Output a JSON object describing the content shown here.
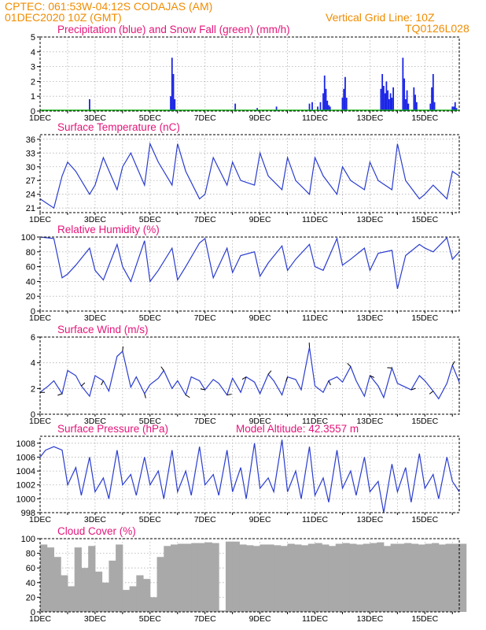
{
  "header": {
    "line1": "CPTEC:   061:53W-04:12S   CODAJAS (AM)",
    "line2": "01DEC2020  10Z  (GMT)",
    "grid_note": "Vertical Grid Line: 10Z",
    "code": "TQ0126L028"
  },
  "colors": {
    "header": "#f08c00",
    "panel_title": "#e4157a",
    "precip": "#1a24e6",
    "snow": "#14b414",
    "line": "#2a3ccf",
    "cloud": "#a9a9a9",
    "grid": "#b0b0b0"
  },
  "x_axis": {
    "day_labels": [
      "1DEC",
      "3DEC",
      "5DEC",
      "7DEC",
      "9DEC",
      "11DEC",
      "13DEC",
      "15DEC"
    ],
    "range_days": [
      0,
      15.25
    ]
  },
  "chart_data": [
    {
      "type": "bar",
      "title": "Precipitation (blue) and Snow Fall (green) (mm/h)",
      "ylim": [
        0,
        5
      ],
      "yticks": [
        "0",
        "1",
        "2",
        "3",
        "4",
        "5"
      ],
      "series": [
        {
          "name": "Precipitation",
          "x": [
            1.8,
            4.75,
            4.8,
            4.85,
            4.9,
            7.1,
            7.9,
            8.6,
            9.8,
            9.9,
            10.1,
            10.2,
            10.3,
            10.35,
            10.4,
            10.45,
            10.5,
            10.55,
            11.0,
            11.05,
            11.1,
            11.15,
            12.4,
            12.45,
            12.5,
            12.55,
            12.6,
            12.65,
            12.7,
            12.75,
            12.8,
            12.85,
            13.2,
            13.25,
            13.3,
            13.35,
            13.4,
            13.6,
            13.65,
            13.7,
            14.2,
            14.25,
            14.3,
            14.35,
            15.0,
            15.05,
            15.1,
            15.15
          ],
          "values": [
            0.8,
            1.0,
            3.6,
            2.5,
            0.8,
            0.5,
            0.2,
            0.3,
            0.5,
            0.6,
            0.3,
            0.6,
            1.2,
            2.4,
            1.5,
            0.7,
            0.4,
            0.3,
            0.9,
            1.5,
            2.3,
            0.9,
            1.5,
            2.5,
            1.7,
            1.2,
            2.0,
            1.4,
            0.8,
            1.2,
            0.9,
            1.6,
            3.6,
            2.2,
            0.8,
            1.4,
            0.5,
            1.6,
            1.1,
            0.6,
            0.5,
            1.6,
            2.5,
            0.6,
            0.3,
            0.3,
            0.6,
            0.2
          ]
        },
        {
          "name": "Snow Fall",
          "x": [],
          "values": []
        }
      ]
    },
    {
      "type": "line",
      "title": "Surface Temperature (nC)",
      "ylim": [
        20,
        37
      ],
      "yticks": [
        "21",
        "24",
        "27",
        "30",
        "33",
        "36"
      ],
      "ytick_values": [
        21,
        24,
        27,
        30,
        33,
        36
      ],
      "x": [
        0,
        0.5,
        0.8,
        1.0,
        1.3,
        1.8,
        2.0,
        2.3,
        2.8,
        3.0,
        3.3,
        3.8,
        4.0,
        4.3,
        4.8,
        5.0,
        5.3,
        5.8,
        6.0,
        6.3,
        6.8,
        7.0,
        7.3,
        7.8,
        8.0,
        8.3,
        8.8,
        9.0,
        9.3,
        9.8,
        10.0,
        10.3,
        10.8,
        11.0,
        11.3,
        11.8,
        12.0,
        12.3,
        12.8,
        13.0,
        13.3,
        13.8,
        14.0,
        14.3,
        14.8,
        15.0,
        15.25
      ],
      "values": [
        23,
        21,
        28,
        31,
        29,
        24,
        26,
        32,
        25,
        30,
        33,
        26,
        35,
        31,
        26,
        35,
        29,
        23,
        24,
        32,
        26,
        31,
        27,
        26,
        33,
        28,
        25,
        32,
        27,
        24,
        32,
        28,
        24,
        30,
        27,
        25,
        31,
        27,
        25,
        35,
        27,
        23,
        24,
        26,
        23,
        29,
        28
      ]
    },
    {
      "type": "line",
      "title": "Relative Humidity (%)",
      "ylim": [
        0,
        100
      ],
      "yticks": [
        "0",
        "20",
        "40",
        "60",
        "80",
        "100"
      ],
      "ytick_values": [
        0,
        20,
        40,
        60,
        80,
        100
      ],
      "x": [
        0,
        0.5,
        0.8,
        1.0,
        1.3,
        1.8,
        2.0,
        2.3,
        2.8,
        3.0,
        3.3,
        3.8,
        4.0,
        4.3,
        4.8,
        5.0,
        5.3,
        5.8,
        6.0,
        6.3,
        6.8,
        7.0,
        7.3,
        7.8,
        8.0,
        8.3,
        8.8,
        9.0,
        9.3,
        9.8,
        10.0,
        10.3,
        10.8,
        11.0,
        11.3,
        11.8,
        12.0,
        12.3,
        12.8,
        13.0,
        13.3,
        13.8,
        14.0,
        14.3,
        14.8,
        15.0,
        15.25
      ],
      "values": [
        100,
        98,
        45,
        50,
        62,
        85,
        55,
        42,
        90,
        60,
        40,
        95,
        40,
        55,
        85,
        42,
        60,
        92,
        98,
        45,
        85,
        52,
        75,
        80,
        47,
        65,
        88,
        55,
        70,
        90,
        60,
        55,
        98,
        62,
        70,
        85,
        55,
        78,
        82,
        30,
        75,
        90,
        85,
        80,
        99,
        70,
        80
      ]
    },
    {
      "type": "line",
      "title": "Surface Wind (m/s)",
      "ylim": [
        0,
        6
      ],
      "yticks": [
        "0",
        "2",
        "4",
        "6"
      ],
      "ytick_values": [
        0,
        2,
        4,
        6
      ],
      "x": [
        0,
        0.3,
        0.5,
        0.8,
        1.0,
        1.3,
        1.5,
        1.8,
        2.0,
        2.3,
        2.5,
        2.8,
        3.0,
        3.3,
        3.5,
        3.8,
        4.0,
        4.3,
        4.5,
        4.8,
        5.0,
        5.3,
        5.5,
        5.8,
        6.0,
        6.3,
        6.5,
        6.8,
        7.0,
        7.3,
        7.5,
        7.8,
        8.0,
        8.3,
        8.5,
        8.8,
        9.0,
        9.3,
        9.5,
        9.8,
        10.0,
        10.3,
        10.5,
        10.8,
        11.0,
        11.3,
        11.5,
        11.8,
        12.0,
        12.3,
        12.5,
        12.8,
        13.0,
        13.3,
        13.5,
        13.8,
        14.0,
        14.3,
        14.5,
        14.8,
        15.0,
        15.25
      ],
      "values": [
        1.7,
        2.2,
        2.6,
        1.6,
        3.4,
        3.0,
        2.2,
        1.4,
        3.0,
        2.6,
        1.8,
        4.5,
        4.9,
        2.1,
        2.9,
        1.6,
        2.3,
        2.8,
        3.4,
        2.0,
        2.6,
        1.5,
        2.9,
        2.6,
        1.9,
        2.7,
        2.4,
        1.5,
        2.8,
        1.7,
        2.9,
        2.5,
        1.6,
        3.1,
        2.6,
        1.5,
        2.9,
        2.7,
        1.9,
        5.2,
        2.2,
        1.7,
        2.6,
        2.9,
        2.5,
        3.7,
        2.6,
        1.4,
        3.0,
        2.2,
        1.3,
        3.6,
        2.4,
        2.1,
        1.9,
        3.0,
        2.6,
        1.8,
        1.2,
        2.4,
        3.8,
        2.5
      ]
    },
    {
      "type": "line",
      "title": "Surface Pressure (hPa)",
      "annotation": "Model Altitude: 42.3557 m",
      "ylim": [
        998,
        1009
      ],
      "yticks": [
        "998",
        "1000",
        "1002",
        "1004",
        "1006",
        "1008"
      ],
      "ytick_values": [
        998,
        1000,
        1002,
        1004,
        1006,
        1008
      ],
      "x": [
        0,
        0.2,
        0.5,
        0.8,
        1.0,
        1.3,
        1.5,
        1.8,
        2.0,
        2.3,
        2.5,
        2.8,
        3.0,
        3.3,
        3.5,
        3.8,
        4.0,
        4.3,
        4.5,
        4.8,
        5.0,
        5.3,
        5.5,
        5.8,
        6.0,
        6.3,
        6.5,
        6.8,
        7.0,
        7.3,
        7.5,
        7.8,
        8.0,
        8.3,
        8.5,
        8.8,
        9.0,
        9.3,
        9.5,
        9.8,
        10.0,
        10.3,
        10.5,
        10.8,
        11.0,
        11.3,
        11.5,
        11.8,
        12.0,
        12.3,
        12.5,
        12.8,
        13.0,
        13.3,
        13.5,
        13.8,
        14.0,
        14.3,
        14.5,
        14.8,
        15.0,
        15.25
      ],
      "values": [
        1006,
        1007,
        1007.5,
        1007,
        1002,
        1004.5,
        1000.5,
        1006,
        1001,
        1003,
        1000,
        1007,
        1002,
        1003.5,
        1000.5,
        1006,
        1002,
        1004,
        1000,
        1007,
        1001,
        1004,
        1000.5,
        1007.5,
        1002,
        1003.5,
        1000.5,
        1007,
        1001,
        1004.5,
        1000,
        1008,
        1001.5,
        1003,
        1001,
        1008.5,
        1001,
        1004,
        1000,
        1007.5,
        1000.5,
        1003,
        999.5,
        1007,
        1001.5,
        1004,
        1000.5,
        1006,
        1001,
        1002.5,
        998,
        1005,
        1001,
        1004.5,
        999.5,
        1006.5,
        1001.5,
        1003.5,
        1000,
        1006,
        1002.5,
        1001
      ]
    },
    {
      "type": "bar",
      "title": "Cloud Cover (%)",
      "ylim": [
        0,
        100
      ],
      "yticks": [
        "0",
        "20",
        "40",
        "60",
        "80",
        "100"
      ],
      "ytick_values": [
        0,
        20,
        40,
        60,
        80,
        100
      ],
      "x": [
        0,
        0.25,
        0.5,
        0.75,
        1.0,
        1.25,
        1.5,
        1.75,
        2.0,
        2.25,
        2.5,
        2.75,
        3.0,
        3.25,
        3.5,
        3.75,
        4.0,
        4.25,
        4.5,
        4.75,
        5.0,
        5.25,
        5.5,
        5.75,
        6.0,
        6.25,
        6.5,
        6.75,
        7.0,
        7.25,
        7.5,
        7.75,
        8.0,
        8.25,
        8.5,
        8.75,
        9.0,
        9.25,
        9.5,
        9.75,
        10.0,
        10.25,
        10.5,
        10.75,
        11.0,
        11.25,
        11.5,
        11.75,
        12.0,
        12.25,
        12.5,
        12.75,
        13.0,
        13.25,
        13.5,
        13.75,
        14.0,
        14.25,
        14.5,
        14.75,
        15.0,
        15.25
      ],
      "values": [
        92,
        88,
        75,
        50,
        35,
        88,
        60,
        90,
        55,
        40,
        70,
        92,
        30,
        35,
        50,
        45,
        20,
        75,
        90,
        92,
        93,
        93,
        94,
        94,
        95,
        94,
        2,
        96,
        96,
        92,
        91,
        90,
        92,
        92,
        91,
        90,
        93,
        92,
        91,
        93,
        94,
        92,
        90,
        93,
        94,
        93,
        92,
        93,
        94,
        95,
        90,
        93,
        93,
        94,
        93,
        92,
        93,
        94,
        92,
        93,
        93,
        93
      ]
    }
  ]
}
